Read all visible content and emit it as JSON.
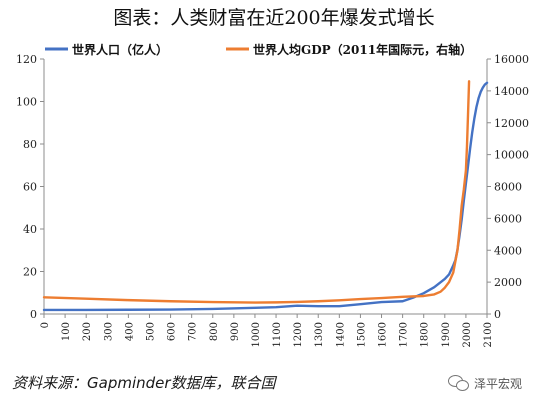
{
  "title": "图表：人类财富在近200年爆发式增长",
  "source": "资料来源：Gapminder数据库，联合国",
  "watermark": "泽平宏观",
  "icons": {
    "watermark_icon": "wechat-icon"
  },
  "chart_data": {
    "type": "line",
    "title": "图表：人类财富在近200年爆发式增长",
    "grid": false,
    "legend_position": "top",
    "x_axis": {
      "min": 0,
      "max": 2100,
      "ticks": [
        0,
        100,
        200,
        300,
        400,
        500,
        600,
        700,
        800,
        900,
        1000,
        1100,
        1200,
        1300,
        1400,
        1500,
        1600,
        1700,
        1800,
        1900,
        2000,
        2100
      ],
      "tick_labels": [
        "0",
        "100",
        "200",
        "300",
        "400",
        "500",
        "600",
        "700",
        "800",
        "900",
        "1000",
        "1100",
        "1200",
        "1300",
        "1400",
        "1500",
        "1600",
        "1700",
        "1800",
        "1900",
        "2000",
        "2100"
      ]
    },
    "y_left": {
      "min": 0,
      "max": 120,
      "ticks": [
        0,
        20,
        40,
        60,
        80,
        100,
        120
      ],
      "tick_labels": [
        "0",
        "20",
        "40",
        "60",
        "80",
        "100",
        "120"
      ]
    },
    "y_right": {
      "min": 0,
      "max": 16000,
      "ticks": [
        0,
        2000,
        4000,
        6000,
        8000,
        10000,
        12000,
        14000,
        16000
      ],
      "tick_labels": [
        "0",
        "2000",
        "4000",
        "6000",
        "8000",
        "10000",
        "12000",
        "14000",
        "16000"
      ]
    },
    "series": [
      {
        "name": "世界人口（亿人）",
        "axis": "left",
        "color": "#4472c4",
        "x": [
          0,
          200,
          400,
          600,
          800,
          1000,
          1100,
          1200,
          1300,
          1400,
          1500,
          1600,
          1700,
          1750,
          1800,
          1850,
          1900,
          1920,
          1940,
          1950,
          1960,
          1970,
          1980,
          1990,
          2000,
          2010,
          2020,
          2030,
          2040,
          2050,
          2060,
          2070,
          2080,
          2090,
          2100
        ],
        "y": [
          1.9,
          1.9,
          2.0,
          2.1,
          2.4,
          2.9,
          3.2,
          3.9,
          3.7,
          3.7,
          4.6,
          5.6,
          6.0,
          7.7,
          9.8,
          12.6,
          16.5,
          18.6,
          22.9,
          25.3,
          30.3,
          37.0,
          44.5,
          53.3,
          61.4,
          69.6,
          77.9,
          85.5,
          92.0,
          97.4,
          101.5,
          104.5,
          106.5,
          108.0,
          108.8
        ]
      },
      {
        "name": "世界人均GDP（2011年国际元，右轴）",
        "axis": "right",
        "color": "#ed7d31",
        "x": [
          0,
          200,
          400,
          600,
          800,
          1000,
          1100,
          1200,
          1300,
          1400,
          1500,
          1600,
          1700,
          1800,
          1850,
          1880,
          1900,
          1920,
          1940,
          1950,
          1960,
          1970,
          1980,
          1990,
          2000,
          2005,
          2010,
          2015
        ],
        "y": [
          1050,
          960,
          870,
          800,
          750,
          720,
          730,
          760,
          800,
          860,
          940,
          1000,
          1080,
          1130,
          1230,
          1400,
          1650,
          2000,
          2600,
          3300,
          4000,
          5300,
          6800,
          7800,
          9000,
          10500,
          12500,
          14600
        ]
      }
    ]
  }
}
